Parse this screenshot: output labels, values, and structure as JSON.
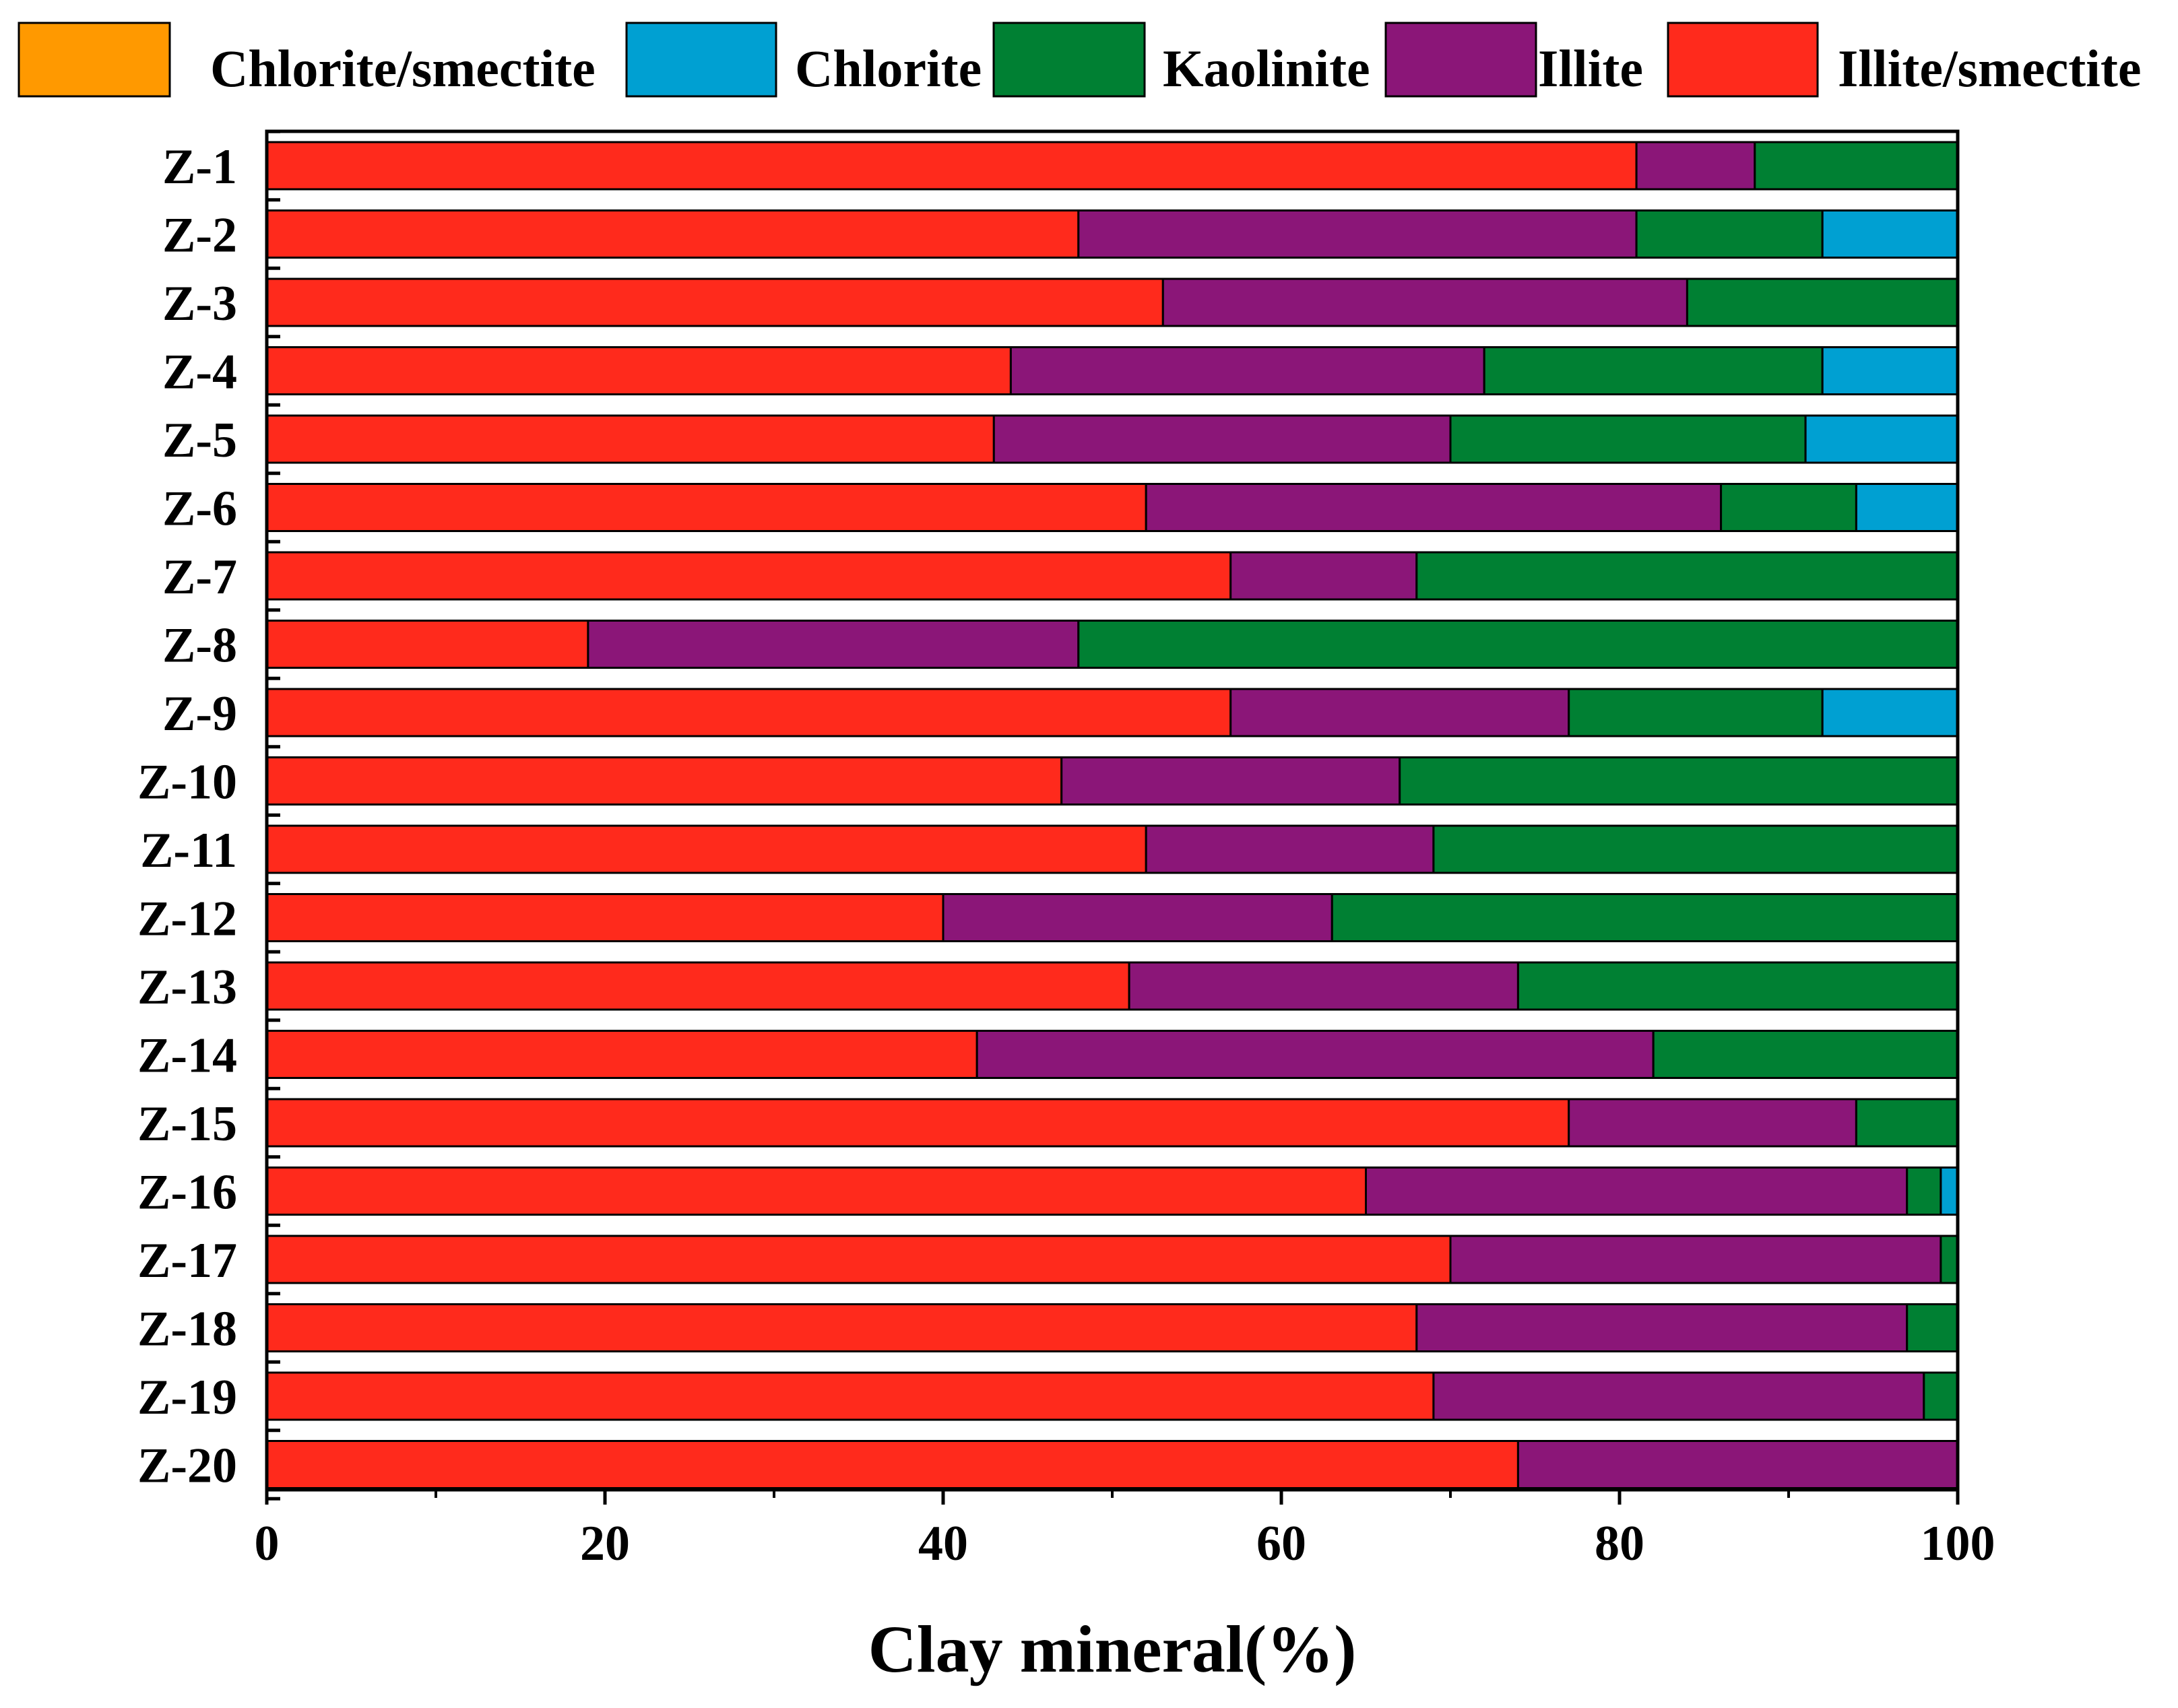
{
  "chart_data": {
    "type": "bar",
    "orientation": "horizontal",
    "stacked": true,
    "title": "",
    "xlabel": "Clay mineral(%)",
    "ylabel": "",
    "xlim": [
      0,
      100
    ],
    "xticks": [
      "0",
      "20",
      "40",
      "60",
      "80",
      "100"
    ],
    "xtick_values": [
      0,
      20,
      40,
      60,
      80,
      100
    ],
    "grid": false,
    "legend_position": "top",
    "categories": [
      "Z-1",
      "Z-2",
      "Z-3",
      "Z-4",
      "Z-5",
      "Z-6",
      "Z-7",
      "Z-8",
      "Z-9",
      "Z-10",
      "Z-11",
      "Z-12",
      "Z-13",
      "Z-14",
      "Z-15",
      "Z-16",
      "Z-17",
      "Z-18",
      "Z-19",
      "Z-20"
    ],
    "legend_order": [
      "Chlorite/smectite",
      "Chlorite",
      "Kaolinite",
      "Illite",
      "Illite/smectite"
    ],
    "series": [
      {
        "name": "Illite/smectite",
        "color": "#FF2A1C",
        "values": [
          81,
          48,
          53,
          44,
          43,
          52,
          57,
          19,
          57,
          47,
          52,
          40,
          51,
          42,
          77,
          65,
          70,
          68,
          69,
          74
        ]
      },
      {
        "name": "Illite",
        "color": "#8B1678",
        "values": [
          7,
          33,
          31,
          28,
          27,
          34,
          11,
          29,
          20,
          20,
          17,
          23,
          23,
          40,
          17,
          32,
          29,
          29,
          29,
          26
        ]
      },
      {
        "name": "Kaolinite",
        "color": "#008033",
        "values": [
          12,
          11,
          16,
          20,
          21,
          8,
          32,
          52,
          15,
          33,
          31,
          37,
          26,
          18,
          6,
          2,
          1,
          3,
          2,
          0
        ]
      },
      {
        "name": "Chlorite",
        "color": "#00A0D2",
        "values": [
          0,
          8,
          0,
          8,
          9,
          6,
          0,
          0,
          8,
          0,
          0,
          0,
          0,
          0,
          0,
          1,
          0,
          0,
          0,
          0
        ]
      },
      {
        "name": "Chlorite/smectite",
        "color": "#FF9900",
        "values": [
          0,
          0,
          0,
          0,
          0,
          0,
          0,
          0,
          0,
          0,
          0,
          0,
          0,
          0,
          0,
          0,
          0,
          0,
          0,
          0
        ]
      }
    ]
  }
}
